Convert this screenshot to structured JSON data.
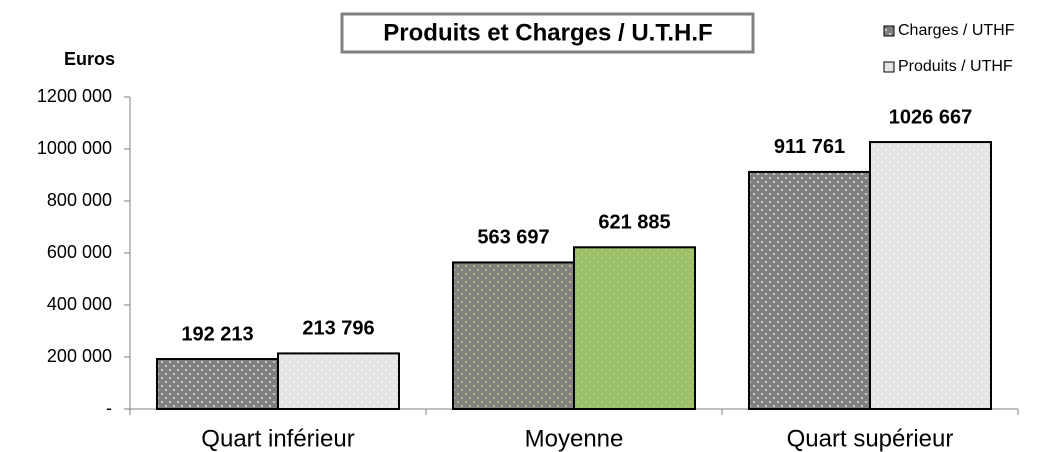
{
  "chart_data": {
    "type": "bar",
    "title": "Produits et Charges / U.T.H.F",
    "y_label": "Euros",
    "categories": [
      "Quart inférieur",
      "Moyenne",
      "Quart supérieur"
    ],
    "series": [
      {
        "name": "Charges / UTHF",
        "color": "#808080",
        "values": [
          192213,
          563697,
          911761
        ],
        "value_labels": [
          "192 213",
          "563 697",
          "911 761"
        ]
      },
      {
        "name": "Produits / UTHF",
        "color": "#e4e4e4",
        "bar_colors": [
          "#e4e4e4",
          "#9dc16a",
          "#e4e4e4"
        ],
        "values": [
          213796,
          621885,
          1026667
        ],
        "value_labels": [
          "213 796",
          "621 885",
          "1026 667"
        ]
      }
    ],
    "ylim": [
      0,
      1200000
    ],
    "yticks": [
      {
        "value": 0,
        "label": "-"
      },
      {
        "value": 200000,
        "label": "200 000"
      },
      {
        "value": 400000,
        "label": "400 000"
      },
      {
        "value": 600000,
        "label": "600 000"
      },
      {
        "value": 800000,
        "label": "800 000"
      },
      {
        "value": 1000000,
        "label": "1000 000"
      },
      {
        "value": 1200000,
        "label": "1200 000"
      }
    ],
    "legend": "top-right"
  }
}
